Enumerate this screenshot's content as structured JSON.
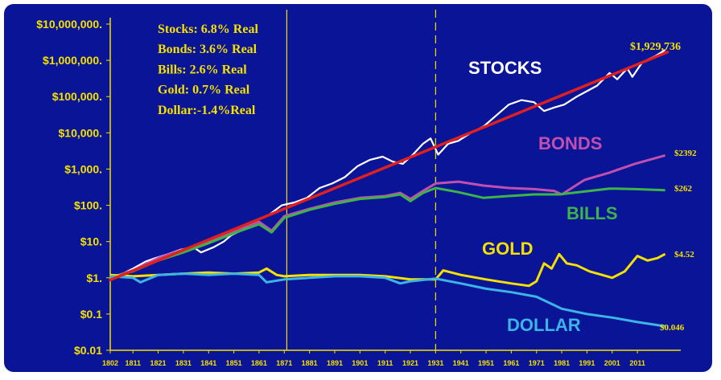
{
  "chart_data": {
    "type": "line",
    "yscale": "log",
    "ylim": [
      0.01,
      10000000
    ],
    "xlim": [
      1802,
      2025
    ],
    "background": "#0a1496",
    "axis_color": "#f5e100",
    "y_ticks": [
      {
        "value": 10000000,
        "label": "$10,000,000."
      },
      {
        "value": 1000000,
        "label": "$1,000,000."
      },
      {
        "value": 100000,
        "label": "$100,000."
      },
      {
        "value": 10000,
        "label": "$10,000."
      },
      {
        "value": 1000,
        "label": "$1,000."
      },
      {
        "value": 100,
        "label": "$100."
      },
      {
        "value": 10,
        "label": "$10."
      },
      {
        "value": 1,
        "label": "$1."
      },
      {
        "value": 0.1,
        "label": "$0.1"
      },
      {
        "value": 0.01,
        "label": "$0.01"
      }
    ],
    "x_ticks": [
      "1802",
      "1811",
      "1821",
      "1831",
      "1841",
      "1851",
      "1861",
      "1871",
      "1881",
      "1891",
      "1901",
      "1911",
      "1921",
      "1931",
      "1941",
      "1951",
      "1961",
      "1971",
      "1981",
      "1991",
      "2001",
      "2011"
    ],
    "vlines": [
      {
        "x": 1872,
        "style": "solid",
        "color": "#f5e100"
      },
      {
        "x": 1931,
        "style": "dashed",
        "color": "#f5e100"
      }
    ],
    "annotations": [
      "Stocks: 6.8% Real",
      "Bonds: 3.6% Real",
      "Bills:   2.6% Real",
      "Gold:   0.7% Real",
      "Dollar:-1.4%Real"
    ],
    "series": [
      {
        "name": "STOCKS",
        "color": "#ffffff",
        "label_color": "#ffffff",
        "end_label": "$1,929,736",
        "x": [
          1802,
          1806,
          1811,
          1816,
          1820,
          1825,
          1830,
          1835,
          1838,
          1843,
          1847,
          1850,
          1855,
          1860,
          1865,
          1870,
          1875,
          1880,
          1885,
          1890,
          1895,
          1900,
          1905,
          1910,
          1914,
          1918,
          1922,
          1926,
          1929,
          1932,
          1936,
          1940,
          1945,
          1950,
          1955,
          1960,
          1965,
          1970,
          1974,
          1978,
          1982,
          1987,
          1990,
          1995,
          2000,
          2003,
          2007,
          2009,
          2013,
          2018,
          2022
        ],
        "y": [
          1,
          1.2,
          1.8,
          2.8,
          3.5,
          4.5,
          6,
          7,
          5,
          7,
          10,
          15,
          22,
          40,
          55,
          100,
          120,
          160,
          300,
          400,
          600,
          1200,
          1800,
          2200,
          1600,
          1400,
          2500,
          5000,
          7000,
          2500,
          5000,
          6000,
          10000,
          15000,
          30000,
          60000,
          80000,
          70000,
          40000,
          50000,
          60000,
          100000,
          130000,
          200000,
          450000,
          300000,
          600000,
          350000,
          900000,
          1300000,
          1929736
        ]
      },
      {
        "name": "BONDS",
        "color": "#c050b0",
        "label_color": "#c050b0",
        "end_label": "$2392",
        "x": [
          1802,
          1811,
          1821,
          1831,
          1841,
          1851,
          1861,
          1866,
          1871,
          1881,
          1891,
          1901,
          1911,
          1917,
          1921,
          1926,
          1931,
          1940,
          1950,
          1960,
          1970,
          1978,
          1981,
          1990,
          2000,
          2010,
          2022
        ],
        "y": [
          1,
          1.6,
          3.5,
          6,
          10,
          20,
          35,
          20,
          50,
          80,
          120,
          160,
          180,
          220,
          150,
          250,
          400,
          450,
          350,
          300,
          280,
          250,
          200,
          500,
          800,
          1400,
          2392
        ]
      },
      {
        "name": "BILLS",
        "color": "#3cb44a",
        "label_color": "#3cb44a",
        "end_label": "$262",
        "x": [
          1802,
          1811,
          1821,
          1831,
          1841,
          1851,
          1861,
          1866,
          1871,
          1881,
          1891,
          1901,
          1911,
          1917,
          1921,
          1926,
          1931,
          1940,
          1950,
          1960,
          1970,
          1980,
          1990,
          2000,
          2010,
          2022
        ],
        "y": [
          1,
          1.5,
          3,
          5,
          9,
          17,
          30,
          18,
          45,
          75,
          110,
          150,
          170,
          200,
          130,
          220,
          300,
          230,
          160,
          180,
          200,
          200,
          240,
          290,
          280,
          262
        ]
      },
      {
        "name": "GOLD",
        "color": "#f5e100",
        "label_color": "#f5e100",
        "end_label": "$4.52",
        "x": [
          1802,
          1811,
          1821,
          1831,
          1841,
          1851,
          1861,
          1864,
          1868,
          1871,
          1881,
          1891,
          1901,
          1911,
          1921,
          1931,
          1934,
          1941,
          1951,
          1961,
          1968,
          1971,
          1974,
          1977,
          1980,
          1983,
          1987,
          1992,
          1997,
          2001,
          2006,
          2011,
          2015,
          2019,
          2022
        ],
        "y": [
          1.2,
          1.1,
          1.2,
          1.3,
          1.4,
          1.3,
          1.4,
          1.8,
          1.2,
          1.1,
          1.2,
          1.2,
          1.2,
          1.1,
          0.9,
          0.9,
          1.6,
          1.2,
          0.9,
          0.7,
          0.6,
          0.8,
          2.5,
          1.8,
          4.5,
          2.5,
          2.2,
          1.5,
          1.2,
          1.0,
          1.5,
          4.0,
          3.0,
          3.5,
          4.52
        ]
      },
      {
        "name": "DOLLAR",
        "color": "#3cb4e6",
        "label_color": "#3cb4e6",
        "end_label": "$0.046",
        "x": [
          1802,
          1811,
          1814,
          1821,
          1831,
          1841,
          1851,
          1861,
          1864,
          1871,
          1881,
          1891,
          1901,
          1911,
          1917,
          1921,
          1931,
          1941,
          1951,
          1961,
          1971,
          1981,
          1991,
          2001,
          2011,
          2022
        ],
        "y": [
          1.1,
          1.0,
          0.75,
          1.2,
          1.3,
          1.2,
          1.3,
          1.2,
          0.75,
          0.9,
          1.0,
          1.1,
          1.1,
          1.0,
          0.7,
          0.8,
          0.95,
          0.7,
          0.5,
          0.4,
          0.3,
          0.14,
          0.1,
          0.08,
          0.06,
          0.046
        ]
      }
    ],
    "trend_line": {
      "color": "#e02020",
      "x": [
        1802,
        2023
      ],
      "y": [
        0.87,
        1700000
      ]
    }
  }
}
